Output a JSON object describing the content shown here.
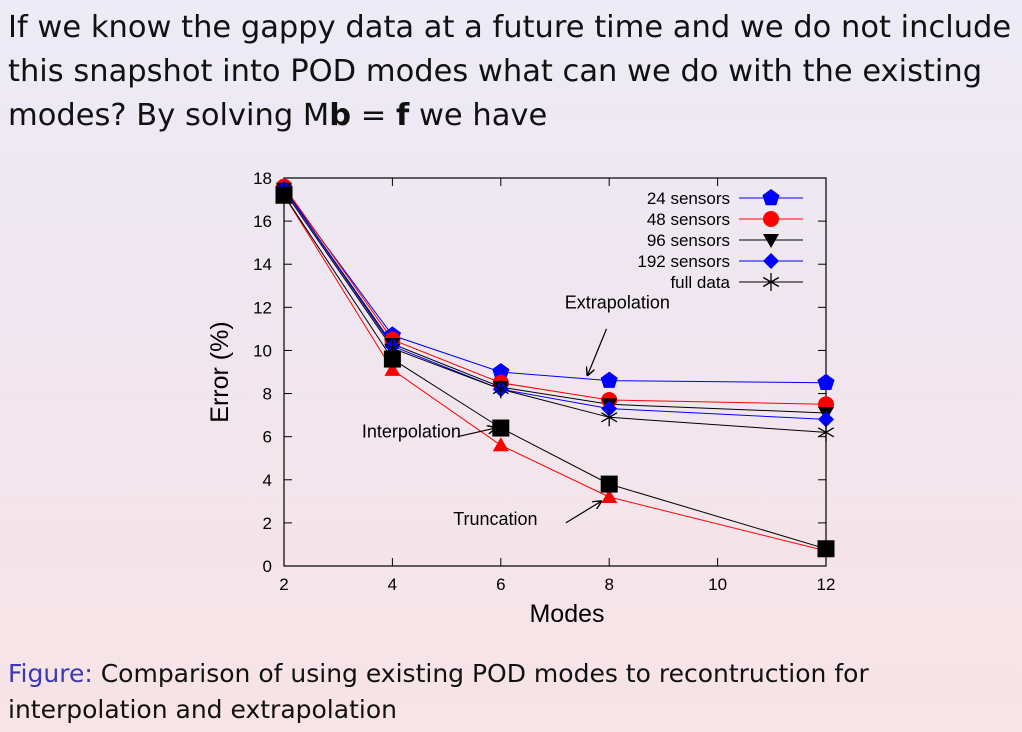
{
  "text": {
    "intro_part1": "If we know the gappy data at a future time and we do not include this snapshot into POD modes what can we do with the existing modes? By solving M",
    "intro_bold_b": "b",
    "intro_equals": " = ",
    "intro_bold_f": "f",
    "intro_part2": " we have",
    "caption_label": "Figure:",
    "caption_text": " Comparison of using existing POD modes to recontruction for interpolation and extrapolation"
  },
  "chart_data": {
    "type": "line",
    "xlabel": "Modes",
    "ylabel": "Error (%)",
    "xlim": [
      2,
      12
    ],
    "ylim": [
      0,
      18
    ],
    "xticks": [
      2,
      4,
      6,
      8,
      10,
      12
    ],
    "yticks": [
      0,
      2,
      4,
      6,
      8,
      10,
      12,
      14,
      16,
      18
    ],
    "grid": false,
    "legend_position": "top-right",
    "series": [
      {
        "name": "24 sensors",
        "color": "#0000ff",
        "marker": "pentagon",
        "in_legend": true,
        "x": [
          2,
          4,
          6,
          8,
          12
        ],
        "y": [
          17.5,
          10.7,
          9.0,
          8.6,
          8.5
        ]
      },
      {
        "name": "48 sensors",
        "color": "#ff0000",
        "marker": "circle",
        "in_legend": true,
        "x": [
          2,
          4,
          6,
          8,
          12
        ],
        "y": [
          17.6,
          10.5,
          8.5,
          7.7,
          7.5
        ]
      },
      {
        "name": "96 sensors",
        "color": "#000000",
        "marker": "triangle-down",
        "in_legend": true,
        "x": [
          2,
          4,
          6,
          8,
          12
        ],
        "y": [
          17.5,
          10.3,
          8.3,
          7.5,
          7.1
        ]
      },
      {
        "name": "192 sensors",
        "color": "#0000ff",
        "marker": "diamond",
        "in_legend": true,
        "x": [
          2,
          4,
          6,
          8,
          12
        ],
        "y": [
          17.5,
          10.2,
          8.2,
          7.3,
          6.8
        ]
      },
      {
        "name": "full data",
        "color": "#000000",
        "marker": "star",
        "in_legend": true,
        "x": [
          2,
          4,
          6,
          8,
          12
        ],
        "y": [
          17.4,
          10.1,
          8.2,
          6.9,
          6.2
        ]
      },
      {
        "color": "#ff0000",
        "marker": "triangle-up",
        "in_legend": false,
        "x": [
          2,
          4,
          6,
          8,
          12
        ],
        "y": [
          17.2,
          9.1,
          5.6,
          3.2,
          0.7
        ]
      },
      {
        "color": "#000000",
        "marker": "square",
        "in_legend": false,
        "x": [
          2,
          4,
          6,
          8,
          12
        ],
        "y": [
          17.2,
          9.6,
          6.4,
          3.8,
          0.8
        ]
      }
    ],
    "annotations": [
      {
        "text": "Extrapolation",
        "text_at": [
          8.15,
          11.95
        ],
        "text_anchor": "middle",
        "arrow_from": [
          7.95,
          11.0
        ],
        "arrow_to": [
          7.6,
          8.85
        ]
      },
      {
        "text": "Interpolation",
        "text_at": [
          4.35,
          5.95
        ],
        "text_anchor": "middle",
        "arrow_from": [
          5.2,
          6.0
        ],
        "arrow_to": [
          5.9,
          6.4
        ]
      },
      {
        "text": "Truncation",
        "text_at": [
          5.9,
          1.9
        ],
        "text_anchor": "middle",
        "arrow_from": [
          7.2,
          2.0
        ],
        "arrow_to": [
          7.85,
          3.0
        ]
      }
    ]
  }
}
